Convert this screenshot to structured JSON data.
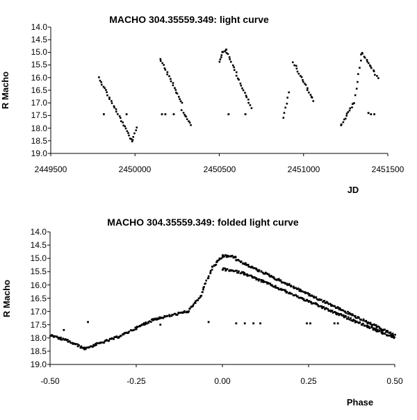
{
  "chart_data": [
    {
      "type": "scatter",
      "title": "MACHO 304.35559.349: light curve",
      "xlabel": "JD",
      "ylabel": "R Macho",
      "xlim": [
        2449500,
        2451500
      ],
      "ylim": [
        14.0,
        19.0
      ],
      "y_inverted": true,
      "grid": false,
      "xticks": [
        "2449500",
        "2450000",
        "2450500",
        "2451000",
        "2451500"
      ],
      "yticks": [
        "14.0",
        "14.5",
        "15.0",
        "15.5",
        "16.0",
        "16.5",
        "17.0",
        "17.5",
        "18.0",
        "18.5",
        "19.0"
      ],
      "marker_color": "#000000",
      "segments": [
        {
          "x_start": 2449785,
          "x_end": 2449985,
          "y_start": 16.0,
          "y_end": 18.55
        },
        {
          "x_start": 2449985,
          "x_end": 2450010,
          "y_start": 18.5,
          "y_end": 17.95
        },
        {
          "x_start": 2450150,
          "x_end": 2450280,
          "y_start": 15.25,
          "y_end": 17.0
        },
        {
          "x_start": 2450280,
          "x_end": 2450330,
          "y_start": 17.3,
          "y_end": 17.85
        },
        {
          "x_start": 2450500,
          "x_end": 2450520,
          "y_start": 15.4,
          "y_end": 15.0
        },
        {
          "x_start": 2450520,
          "x_end": 2450540,
          "y_start": 15.0,
          "y_end": 14.9
        },
        {
          "x_start": 2450540,
          "x_end": 2450690,
          "y_start": 14.9,
          "y_end": 17.2
        },
        {
          "x_start": 2450880,
          "x_end": 2450910,
          "y_start": 17.6,
          "y_end": 16.6
        },
        {
          "x_start": 2450940,
          "x_end": 2451060,
          "y_start": 15.4,
          "y_end": 16.9
        },
        {
          "x_start": 2451220,
          "x_end": 2451300,
          "y_start": 17.9,
          "y_end": 17.0
        },
        {
          "x_start": 2451300,
          "x_end": 2451345,
          "y_start": 17.0,
          "y_end": 15.05
        },
        {
          "x_start": 2451345,
          "x_end": 2451440,
          "y_start": 15.0,
          "y_end": 16.0
        }
      ],
      "outliers": [
        {
          "x": 2449815,
          "y": 17.45
        },
        {
          "x": 2449950,
          "y": 17.45
        },
        {
          "x": 2450160,
          "y": 17.45
        },
        {
          "x": 2450180,
          "y": 17.45
        },
        {
          "x": 2450230,
          "y": 17.45
        },
        {
          "x": 2450555,
          "y": 17.45
        },
        {
          "x": 2450655,
          "y": 17.45
        },
        {
          "x": 2451385,
          "y": 17.4
        },
        {
          "x": 2451400,
          "y": 17.45
        },
        {
          "x": 2451420,
          "y": 17.45
        }
      ]
    },
    {
      "type": "scatter",
      "title": "MACHO 304.35559.349: folded light curve",
      "xlabel": "Phase",
      "ylabel": "R Macho",
      "xlim": [
        -0.5,
        0.5
      ],
      "ylim": [
        14.0,
        19.0
      ],
      "y_inverted": true,
      "grid": false,
      "xticks": [
        "-0.50",
        "-0.25",
        "0.00",
        "0.25",
        "0.50"
      ],
      "yticks": [
        "14.0",
        "14.5",
        "15.0",
        "15.5",
        "16.0",
        "16.5",
        "17.0",
        "17.5",
        "18.0",
        "18.5",
        "19.0"
      ],
      "marker_color": "#000000",
      "segments": [
        {
          "x_start": -0.5,
          "x_end": -0.45,
          "y_start": 17.9,
          "y_end": 18.1
        },
        {
          "x_start": -0.45,
          "x_end": -0.4,
          "y_start": 18.1,
          "y_end": 18.4
        },
        {
          "x_start": -0.4,
          "x_end": -0.3,
          "y_start": 18.4,
          "y_end": 17.95
        },
        {
          "x_start": -0.3,
          "x_end": -0.2,
          "y_start": 17.95,
          "y_end": 17.3
        },
        {
          "x_start": -0.2,
          "x_end": -0.1,
          "y_start": 17.3,
          "y_end": 17.0
        },
        {
          "x_start": -0.1,
          "x_end": -0.06,
          "y_start": 17.0,
          "y_end": 16.4
        },
        {
          "x_start": -0.06,
          "x_end": -0.03,
          "y_start": 16.3,
          "y_end": 15.4
        },
        {
          "x_start": -0.03,
          "x_end": 0.0,
          "y_start": 15.35,
          "y_end": 14.95
        },
        {
          "x_start": 0.0,
          "x_end": 0.04,
          "y_start": 14.9,
          "y_end": 14.95
        },
        {
          "x_start": 0.04,
          "x_end": 0.5,
          "y_start": 15.05,
          "y_end": 17.9
        },
        {
          "x_start": 0.0,
          "x_end": 0.06,
          "y_start": 15.4,
          "y_end": 15.55
        },
        {
          "x_start": 0.06,
          "x_end": 0.3,
          "y_start": 15.55,
          "y_end": 16.9
        },
        {
          "x_start": 0.3,
          "x_end": 0.5,
          "y_start": 16.9,
          "y_end": 18.0
        }
      ],
      "outliers": [
        {
          "x": -0.39,
          "y": 17.4
        },
        {
          "x": -0.46,
          "y": 17.7
        },
        {
          "x": -0.18,
          "y": 17.5
        },
        {
          "x": -0.04,
          "y": 17.4
        },
        {
          "x": 0.04,
          "y": 17.45
        },
        {
          "x": 0.065,
          "y": 17.45
        },
        {
          "x": 0.09,
          "y": 17.45
        },
        {
          "x": 0.11,
          "y": 17.45
        },
        {
          "x": 0.245,
          "y": 17.45
        },
        {
          "x": 0.255,
          "y": 17.45
        },
        {
          "x": 0.325,
          "y": 17.45
        },
        {
          "x": 0.335,
          "y": 17.45
        }
      ]
    }
  ]
}
